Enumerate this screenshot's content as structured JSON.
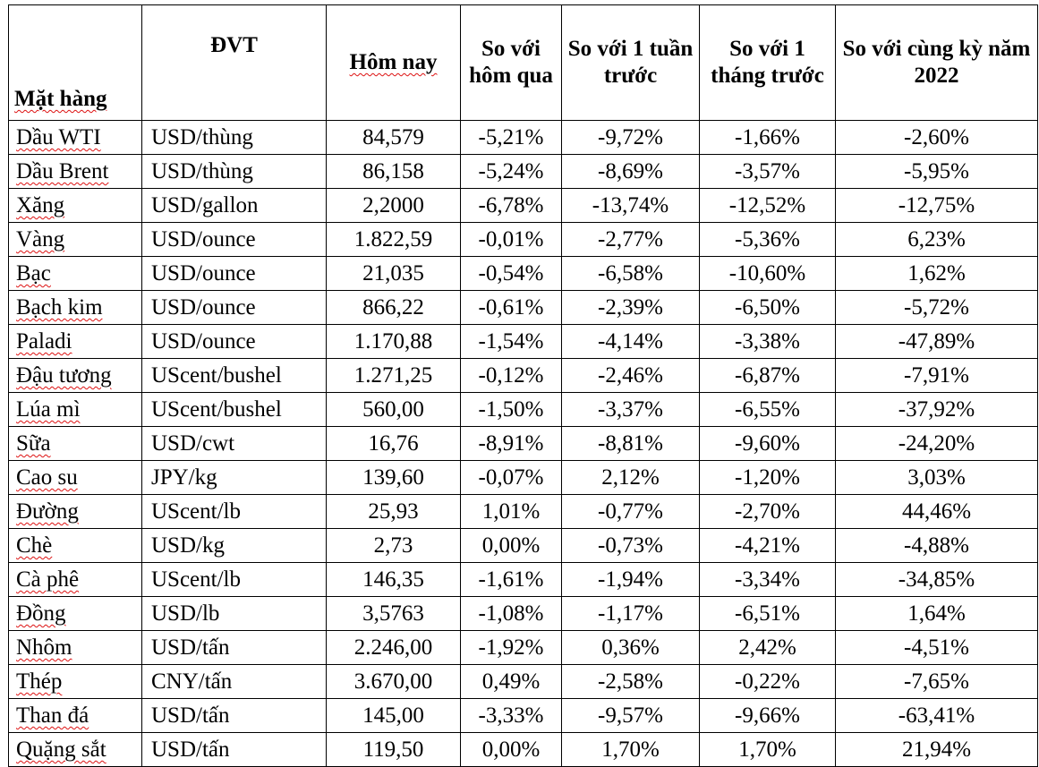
{
  "table": {
    "headers": {
      "name": "Mặt hàng",
      "unit": "ĐVT",
      "today": "Hôm nay",
      "vs_yesterday": "So với hôm qua",
      "vs_week": "So với 1 tuần trước",
      "vs_month": "So với 1 tháng trước",
      "vs_year": "So với cùng kỳ năm 2022"
    },
    "rows": [
      {
        "name": "Dầu WTI",
        "unit": "USD/thùng",
        "today": "84,579",
        "d1": "-5,21%",
        "w1": "-9,72%",
        "m1": "-1,66%",
        "y1": "-2,60%"
      },
      {
        "name": "Dầu Brent",
        "unit": "USD/thùng",
        "today": "86,158",
        "d1": "-5,24%",
        "w1": "-8,69%",
        "m1": "-3,57%",
        "y1": "-5,95%"
      },
      {
        "name": "Xăng",
        "unit": "USD/gallon",
        "today": "2,2000",
        "d1": "-6,78%",
        "w1": "-13,74%",
        "m1": "-12,52%",
        "y1": "-12,75%"
      },
      {
        "name": "Vàng",
        "unit": "USD/ounce",
        "today": "1.822,59",
        "d1": "-0,01%",
        "w1": "-2,77%",
        "m1": "-5,36%",
        "y1": "6,23%"
      },
      {
        "name": "Bạc",
        "unit": "USD/ounce",
        "today": "21,035",
        "d1": "-0,54%",
        "w1": "-6,58%",
        "m1": "-10,60%",
        "y1": "1,62%"
      },
      {
        "name": "Bạch kim",
        "unit": "USD/ounce",
        "today": "866,22",
        "d1": "-0,61%",
        "w1": "-2,39%",
        "m1": "-6,50%",
        "y1": "-5,72%"
      },
      {
        "name": "Paladi",
        "unit": "USD/ounce",
        "today": "1.170,88",
        "d1": "-1,54%",
        "w1": "-4,14%",
        "m1": "-3,38%",
        "y1": "-47,89%"
      },
      {
        "name": "Đậu tương",
        "unit": "UScent/bushel",
        "today": "1.271,25",
        "d1": "-0,12%",
        "w1": "-2,46%",
        "m1": "-6,87%",
        "y1": "-7,91%"
      },
      {
        "name": "Lúa mì",
        "unit": "UScent/bushel",
        "today": "560,00",
        "d1": "-1,50%",
        "w1": "-3,37%",
        "m1": "-6,55%",
        "y1": "-37,92%"
      },
      {
        "name": "Sữa",
        "unit": "USD/cwt",
        "today": "16,76",
        "d1": "-8,91%",
        "w1": "-8,81%",
        "m1": "-9,60%",
        "y1": "-24,20%"
      },
      {
        "name": "Cao su",
        "unit": "JPY/kg",
        "today": "139,60",
        "d1": "-0,07%",
        "w1": "2,12%",
        "m1": "-1,20%",
        "y1": "3,03%"
      },
      {
        "name": "Đường",
        "unit": "UScent/lb",
        "today": "25,93",
        "d1": "1,01%",
        "w1": "-0,77%",
        "m1": "-2,70%",
        "y1": "44,46%"
      },
      {
        "name": "Chè",
        "unit": "USD/kg",
        "today": "2,73",
        "d1": "0,00%",
        "w1": "-0,73%",
        "m1": "-4,21%",
        "y1": "-4,88%"
      },
      {
        "name": "Cà phê",
        "unit": "UScent/lb",
        "today": "146,35",
        "d1": "-1,61%",
        "w1": "-1,94%",
        "m1": "-3,34%",
        "y1": "-34,85%"
      },
      {
        "name": "Đồng",
        "unit": "USD/lb",
        "today": "3,5763",
        "d1": "-1,08%",
        "w1": "-1,17%",
        "m1": "-6,51%",
        "y1": "1,64%"
      },
      {
        "name": "Nhôm",
        "unit": "USD/tấn",
        "today": "2.246,00",
        "d1": "-1,92%",
        "w1": "0,36%",
        "m1": "2,42%",
        "y1": "-4,51%"
      },
      {
        "name": "Thép",
        "unit": "CNY/tấn",
        "today": "3.670,00",
        "d1": "0,49%",
        "w1": "-2,58%",
        "m1": "-0,22%",
        "y1": "-7,65%"
      },
      {
        "name": "Than đá",
        "unit": "USD/tấn",
        "today": "145,00",
        "d1": "-3,33%",
        "w1": "-9,57%",
        "m1": "-9,66%",
        "y1": "-63,41%"
      },
      {
        "name": "Quặng sắt",
        "unit": "USD/tấn",
        "today": "119,50",
        "d1": "0,00%",
        "w1": "1,70%",
        "m1": "1,70%",
        "y1": "21,94%"
      }
    ]
  }
}
